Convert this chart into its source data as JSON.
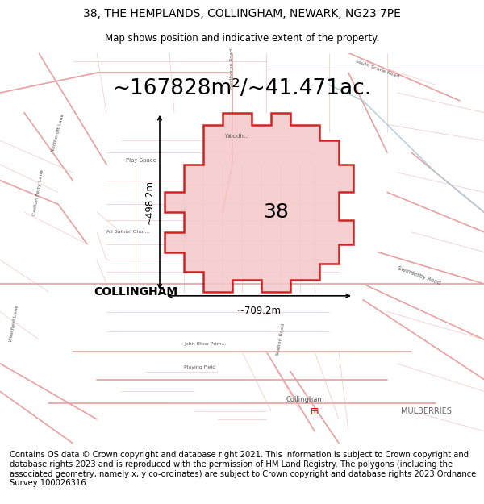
{
  "title_line1": "38, THE HEMPLANDS, COLLINGHAM, NEWARK, NG23 7PE",
  "title_line2": "Map shows position and indicative extent of the property.",
  "area_text": "~167828m²/~41.471ac.",
  "label_38": "38",
  "label_collingham": "COLLINGHAM",
  "label_width": "~709.2m",
  "label_height": "~498.2m",
  "footer_text": "Contains OS data © Crown copyright and database right 2021. This information is subject to Crown copyright and database rights 2023 and is reproduced with the permission of HM Land Registry. The polygons (including the associated geometry, namely x, y co-ordinates) are subject to Crown copyright and database rights 2023 Ordnance Survey 100026316.",
  "map_bg": "#ffffff",
  "highlight_fill": "#f5c8c8",
  "highlight_edge": "#cc0000",
  "road_color": "#e8a0a0",
  "road_color_thin": "#f0b8b8",
  "text_color": "#000000",
  "fig_bg": "#ffffff",
  "title_fontsize": 10,
  "subtitle_fontsize": 8.5,
  "area_fontsize": 19,
  "label_fontsize": 18,
  "collingham_fontsize": 10,
  "footer_fontsize": 7.2
}
